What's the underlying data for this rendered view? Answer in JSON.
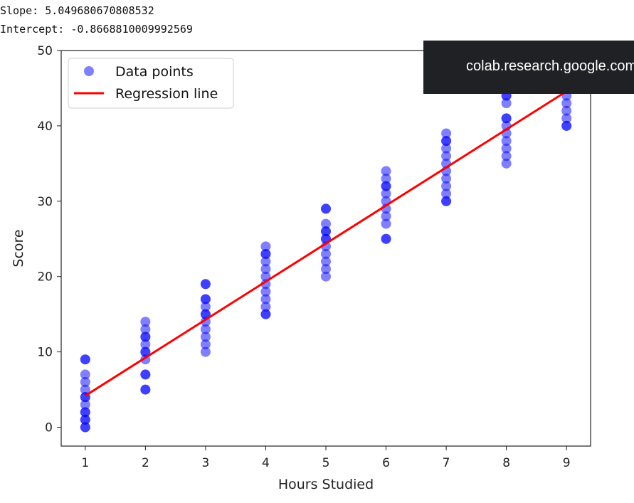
{
  "console": {
    "slope_line": "Slope: 5.049680670808532",
    "intercept_line": "Intercept: -0.8668810009992569"
  },
  "toast": {
    "text": "colab.research.google.com"
  },
  "colors": {
    "points": "#0000ff",
    "regression": "#ff0000",
    "toast_bg": "#202124"
  },
  "chart_data": {
    "type": "scatter",
    "title": "",
    "xlabel": "Hours Studied",
    "ylabel": "Score",
    "xlim": [
      0.6,
      9.4
    ],
    "ylim": [
      -2.5,
      50
    ],
    "xticks": [
      1,
      2,
      3,
      4,
      5,
      6,
      7,
      8,
      9
    ],
    "yticks": [
      0,
      10,
      20,
      30,
      40,
      50
    ],
    "grid": false,
    "legend": {
      "placement": "top-left",
      "entries": [
        "Data points",
        "Regression line"
      ]
    },
    "series": [
      {
        "name": "Data points",
        "marker": "circle",
        "alpha": 0.5,
        "x": [
          1,
          1,
          1,
          1,
          1,
          1,
          1,
          1,
          1,
          1,
          1,
          1,
          1,
          1,
          2,
          2,
          2,
          2,
          2,
          2,
          2,
          2,
          2,
          2,
          2,
          2,
          3,
          3,
          3,
          3,
          3,
          3,
          3,
          3,
          3,
          3,
          3,
          3,
          4,
          4,
          4,
          4,
          4,
          4,
          4,
          4,
          4,
          4,
          4,
          4,
          5,
          5,
          5,
          5,
          5,
          5,
          5,
          5,
          5,
          5,
          5,
          5,
          6,
          6,
          6,
          6,
          6,
          6,
          6,
          6,
          6,
          6,
          6,
          7,
          7,
          7,
          7,
          7,
          7,
          7,
          7,
          7,
          7,
          7,
          7,
          8,
          8,
          8,
          8,
          8,
          8,
          8,
          8,
          8,
          8,
          8,
          8,
          9,
          9,
          9,
          9,
          9,
          9,
          9,
          9,
          9
        ],
        "y": [
          0,
          0,
          1,
          1,
          2,
          2,
          3,
          4,
          4,
          5,
          6,
          7,
          9,
          9,
          5,
          5,
          7,
          7,
          9,
          10,
          10,
          11,
          12,
          12,
          13,
          14,
          10,
          11,
          12,
          13,
          14,
          15,
          15,
          16,
          17,
          17,
          19,
          19,
          15,
          15,
          16,
          17,
          18,
          19,
          20,
          21,
          22,
          23,
          23,
          24,
          20,
          21,
          22,
          23,
          24,
          25,
          25,
          26,
          26,
          27,
          29,
          29,
          25,
          25,
          27,
          28,
          29,
          30,
          31,
          32,
          32,
          33,
          34,
          30,
          30,
          31,
          32,
          33,
          34,
          35,
          36,
          37,
          38,
          38,
          39,
          35,
          36,
          37,
          38,
          39,
          40,
          41,
          41,
          43,
          44,
          44,
          45,
          40,
          40,
          41,
          42,
          43,
          44,
          45,
          46,
          47
        ]
      },
      {
        "name": "Regression line",
        "type": "line",
        "slope": 5.049680670808532,
        "intercept": -0.8668810009992569,
        "x": [
          1,
          9
        ]
      }
    ]
  }
}
